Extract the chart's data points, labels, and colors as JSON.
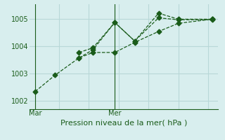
{
  "background_color": "#d8eeee",
  "grid_color": "#b8d8d8",
  "line_color": "#1a5c1a",
  "xlabel": "Pression niveau de la mer( hPa )",
  "xlabel_fontsize": 8,
  "yticks": [
    1002,
    1003,
    1004,
    1005
  ],
  "ylim": [
    1001.7,
    1005.55
  ],
  "xlim": [
    0,
    9.5
  ],
  "xtick_positions": [
    0.3,
    4.3
  ],
  "xtick_labels": [
    "Mar",
    "Mer"
  ],
  "vline_x": [
    0.3,
    4.3
  ],
  "line1_x": [
    0.3,
    1.3,
    2.5,
    3.2,
    4.3,
    5.3,
    6.5,
    7.5,
    9.2
  ],
  "line1_y": [
    1002.35,
    1002.95,
    1003.58,
    1003.78,
    1003.78,
    1004.15,
    1004.55,
    1004.85,
    1005.0
  ],
  "line2_x": [
    2.5,
    3.2,
    4.3,
    5.3,
    6.5,
    7.5,
    9.2
  ],
  "line2_y": [
    1003.58,
    1003.88,
    1004.88,
    1004.2,
    1005.05,
    1004.98,
    1004.98
  ],
  "line3_x": [
    2.5,
    3.2,
    4.3,
    5.3,
    6.5,
    7.5,
    9.2
  ],
  "line3_y": [
    1003.78,
    1003.95,
    1004.88,
    1004.2,
    1005.22,
    1005.0,
    1005.0
  ],
  "marker_size": 3.5,
  "linewidth": 0.9
}
